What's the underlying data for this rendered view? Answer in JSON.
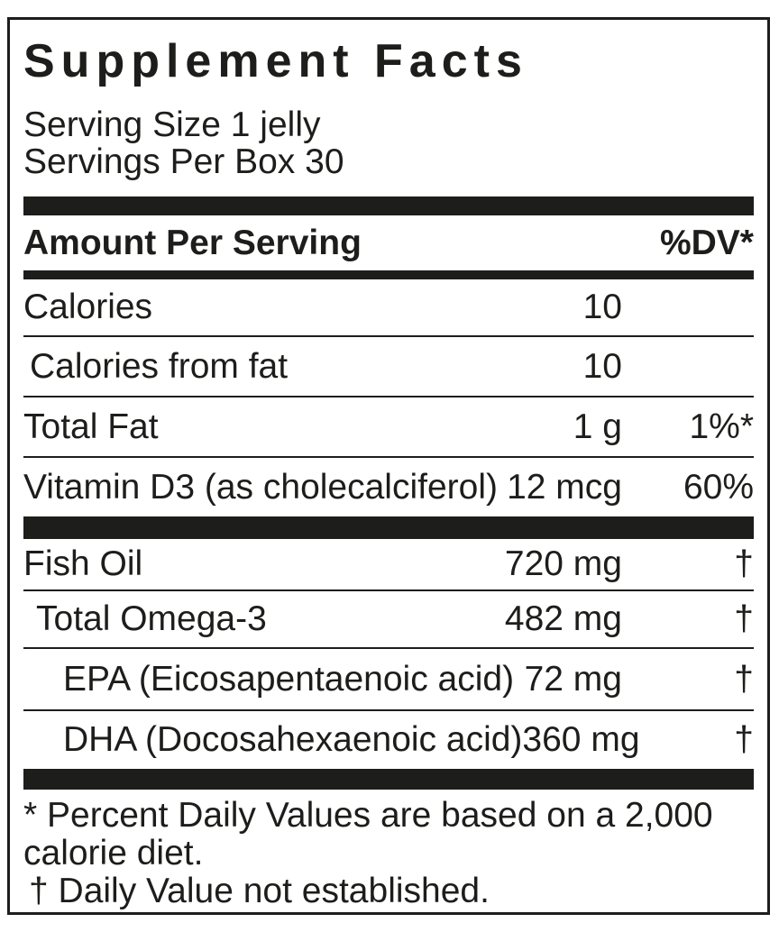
{
  "panel": {
    "title": "Supplement Facts",
    "serving_lines": [
      "Serving Size 1 jelly",
      "Servings Per Box 30"
    ],
    "columns": {
      "header_left": "Amount Per Serving",
      "header_right": "%DV*"
    },
    "sections": [
      {
        "rows": [
          {
            "name": "Calories",
            "amount": "10",
            "dv": ""
          },
          {
            "name": "Calories from fat",
            "amount": "10",
            "dv": ""
          },
          {
            "name": "Total Fat",
            "amount": "1 g",
            "dv": "1%*"
          },
          {
            "name": "Vitamin D3 (as cholecalciferol)",
            "amount": "12 mcg",
            "dv": "60%"
          }
        ]
      },
      {
        "rows": [
          {
            "name": "Fish Oil",
            "amount": "720 mg",
            "dv": "†"
          },
          {
            "name": "Total Omega-3",
            "amount": "482 mg",
            "dv": "†"
          },
          {
            "name": "EPA (Eicosapentaenoic acid)",
            "amount": "72 mg",
            "dv": "†"
          },
          {
            "name": "DHA (Docosahexaenoic acid)",
            "amount": "360 mg",
            "dv": "†"
          }
        ]
      }
    ],
    "footnotes": [
      "* Percent Daily Values are based on a 2,000 calorie diet.",
      "† Daily Value not established."
    ],
    "colors": {
      "ink": "#1d1d1b",
      "background": "#ffffff"
    }
  }
}
